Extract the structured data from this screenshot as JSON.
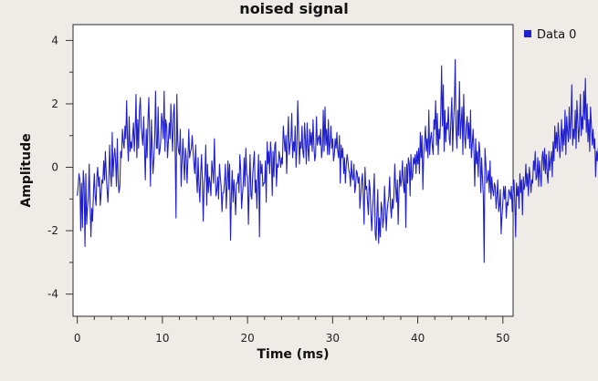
{
  "chart_data": {
    "type": "line",
    "title": "noised signal",
    "xlabel": "Time (ms)",
    "ylabel": "Amplitude",
    "xlim": [
      -0.5,
      51.2
    ],
    "ylim": [
      -4.7,
      4.5
    ],
    "xticks": [
      0,
      10,
      20,
      30,
      40,
      50
    ],
    "yticks": [
      -4,
      -2,
      0,
      2,
      4
    ],
    "grid": false,
    "legend_position": "top-right",
    "series": [
      {
        "name": "Data 0",
        "color": "#1f1fcf",
        "x_start": 0,
        "x_step": 0.1,
        "y": [
          -0.9,
          -0.6,
          -0.2,
          -0.4,
          -2.0,
          -0.5,
          -1.9,
          -0.1,
          -0.5,
          -2.5,
          -0.2,
          -1.8,
          -1.3,
          -0.9,
          0.1,
          -1.1,
          -2.2,
          -1.3,
          -1.7,
          -0.8,
          -0.2,
          -0.9,
          -1.2,
          -0.3,
          0.0,
          -0.6,
          -0.3,
          -1.2,
          -0.8,
          -0.4,
          -0.5,
          0.2,
          -0.4,
          0.5,
          -0.2,
          -0.7,
          -1.1,
          -0.4,
          0.7,
          -0.2,
          -0.6,
          1.1,
          -0.3,
          0.3,
          0.6,
          0.2,
          -0.6,
          0.9,
          -0.4,
          -0.8,
          -0.6,
          0.5,
          0.3,
          1.2,
          0.8,
          0.6,
          1.3,
          0.9,
          2.1,
          0.8,
          0.2,
          1.6,
          0.5,
          0.8,
          0.6,
          1.0,
          1.4,
          0.5,
          1.2,
          2.3,
          0.3,
          1.5,
          0.6,
          1.8,
          2.2,
          1.3,
          1.0,
          0.7,
          1.6,
          0.6,
          -0.4,
          1.2,
          0.3,
          1.4,
          2.2,
          0.9,
          -0.6,
          1.5,
          0.6,
          -0.2,
          0.3,
          1.0,
          2.4,
          0.6,
          0.6,
          1.9,
          0.4,
          0.5,
          0.8,
          1.7,
          1.4,
          0.9,
          2.4,
          0.5,
          1.5,
          1.3,
          0.3,
          0.8,
          1.4,
          0.9,
          2.0,
          1.2,
          0.5,
          1.7,
          2.0,
          0.4,
          -1.6,
          2.3,
          0.8,
          0.5,
          0.4,
          1.2,
          -0.6,
          0.1,
          0.9,
          0.2,
          -0.4,
          0.6,
          0.3,
          -0.5,
          0.3,
          1.2,
          0.3,
          0.5,
          0.6,
          1.0,
          0.5,
          0.1,
          -0.2,
          0.7,
          -0.3,
          -0.8,
          0.3,
          -0.6,
          -1.1,
          -0.2,
          0.4,
          -0.5,
          -1.7,
          -0.5,
          -0.2,
          0.7,
          -1.2,
          0.1,
          -0.8,
          -0.3,
          -0.5,
          -0.9,
          0.2,
          -0.1,
          -0.5,
          0.9,
          -0.2,
          -0.9,
          -0.7,
          -0.3,
          -1.0,
          0.1,
          -0.3,
          -0.6,
          -1.4,
          -0.8,
          -0.8,
          -0.5,
          0.1,
          -1.3,
          -0.6,
          0.2,
          -0.7,
          0.1,
          -2.3,
          -0.9,
          -0.1,
          -1.1,
          -0.4,
          -0.8,
          -1.5,
          -0.5,
          -0.5,
          -0.2,
          -0.8,
          0.4,
          -0.1,
          -1.3,
          -0.9,
          -0.5,
          0.3,
          -0.6,
          0.6,
          -0.2,
          -0.3,
          -1.8,
          -0.6,
          0.4,
          -0.9,
          -1.0,
          -0.3,
          0.1,
          0.5,
          -0.8,
          -0.4,
          -1.3,
          -0.3,
          0.4,
          -2.2,
          0.2,
          -0.2,
          0.1,
          -0.6,
          -0.5,
          -0.5,
          0.2,
          -1.1,
          0.8,
          0.1,
          0.5,
          -0.2,
          0.8,
          0.4,
          -0.9,
          0.5,
          -0.3,
          0.7,
          0.8,
          -0.6,
          0.1,
          0.0,
          0.5,
          0.3,
          0.0,
          0.3,
          0.1,
          1.3,
          0.9,
          0.5,
          1.0,
          -0.2,
          0.8,
          1.6,
          0.4,
          0.7,
          0.9,
          1.7,
          0.3,
          0.8,
          0.5,
          1.3,
          0.0,
          0.6,
          2.1,
          1.1,
          0.1,
          0.8,
          0.6,
          1.3,
          0.5,
          0.3,
          1.4,
          0.9,
          0.1,
          1.4,
          0.6,
          0.2,
          1.2,
          0.7,
          1.1,
          0.5,
          1.5,
          0.7,
          0.2,
          0.4,
          1.6,
          0.7,
          0.9,
          1.0,
          0.7,
          1.2,
          0.3,
          0.6,
          1.8,
          0.5,
          1.9,
          0.7,
          1.2,
          0.4,
          1.5,
          0.4,
          0.8,
          1.3,
          0.6,
          0.9,
          0.2,
          0.4,
          0.9,
          0.6,
          1.1,
          0.5,
          0.3,
          1.0,
          -0.5,
          0.7,
          0.3,
          0.6,
          -0.2,
          0.3,
          -0.5,
          0.1,
          0.4,
          0.2,
          -0.1,
          -0.2,
          -0.6,
          0.2,
          -0.3,
          -0.4,
          0.1,
          -0.8,
          -0.6,
          -0.1,
          -0.2,
          -0.5,
          -0.3,
          -1.3,
          -0.9,
          -0.4,
          -0.2,
          -0.9,
          -1.8,
          0.0,
          -0.7,
          -0.6,
          -1.1,
          -1.5,
          -0.4,
          -0.7,
          -1.5,
          -2.0,
          -1.3,
          -0.8,
          -0.2,
          -2.1,
          -2.3,
          -1.5,
          -0.7,
          -2.4,
          -1.6,
          -2.2,
          -1.1,
          -1.3,
          -1.9,
          -1.6,
          -0.6,
          -1.3,
          -2.0,
          -1.4,
          -1.1,
          -0.9,
          -0.3,
          -1.2,
          -1.6,
          -1.0,
          -1.3,
          -0.9,
          0.1,
          -0.6,
          -1.1,
          -0.4,
          -1.8,
          -0.7,
          -0.1,
          -0.6,
          -0.4,
          0.2,
          -0.5,
          -0.8,
          0.0,
          -1.9,
          0.1,
          -0.5,
          0.3,
          0.1,
          -0.9,
          0.4,
          -0.4,
          -0.3,
          0.3,
          0.1,
          0.4,
          -0.2,
          0.5,
          0.1,
          0.6,
          -0.2,
          1.1,
          0.3,
          1.0,
          -0.7,
          0.4,
          0.8,
          1.3,
          0.5,
          0.9,
          0.3,
          1.8,
          0.4,
          0.9,
          1.1,
          0.7,
          0.4,
          1.5,
          1.2,
          2.1,
          0.7,
          1.7,
          0.4,
          1.2,
          0.9,
          1.7,
          3.2,
          1.3,
          2.6,
          0.5,
          1.8,
          0.8,
          1.4,
          1.2,
          1.9,
          0.9,
          0.7,
          1.5,
          2.2,
          0.5,
          1.4,
          2.0,
          3.4,
          1.2,
          0.6,
          1.8,
          1.0,
          2.7,
          0.9,
          1.4,
          1.9,
          0.4,
          2.3,
          1.0,
          0.6,
          1.3,
          1.6,
          0.9,
          1.4,
          0.6,
          1.8,
          0.3,
          0.7,
          1.2,
          0.5,
          -0.6,
          0.9,
          0.1,
          0.5,
          -0.3,
          0.8,
          0.5,
          -0.8,
          0.3,
          -0.3,
          -0.9,
          -3.0,
          0.6,
          0.1,
          -0.5,
          -0.4,
          -0.1,
          -0.8,
          0.2,
          -1.0,
          -0.3,
          -0.7,
          -0.9,
          -0.5,
          -0.6,
          -1.3,
          -0.9,
          -0.4,
          -1.4,
          -1.2,
          -0.7,
          -2.1,
          -1.5,
          -1.1,
          -0.6,
          -1.0,
          -0.6,
          -1.6,
          -1.1,
          -1.2,
          -0.7,
          -0.8,
          -1.0,
          -0.6,
          -1.4,
          -0.8,
          -0.4,
          -1.1,
          -2.2,
          -0.5,
          -0.9,
          -0.6,
          -1.3,
          -0.2,
          -0.8,
          -0.4,
          -1.5,
          -0.3,
          -0.7,
          -0.5,
          0.1,
          -0.6,
          -0.2,
          -0.9,
          0.0,
          -0.3,
          -0.8,
          -0.4,
          -0.5,
          0.2,
          -0.1,
          0.5,
          -0.4,
          -0.3,
          0.3,
          -0.6,
          0.2,
          -0.2,
          -0.6,
          0.3,
          0.5,
          -0.1,
          0.6,
          -0.2,
          0.4,
          -0.2,
          -0.5,
          0.5,
          -0.1,
          0.2,
          0.5,
          -0.3,
          0.8,
          0.2,
          1.3,
          0.6,
          1.1,
          0.5,
          1.4,
          0.9,
          0.3,
          0.8,
          1.5,
          0.5,
          1.2,
          0.7,
          1.8,
          0.4,
          1.6,
          1.1,
          0.8,
          1.9,
          0.9,
          1.5,
          2.6,
          0.7,
          1.2,
          0.9,
          1.8,
          0.6,
          2.1,
          1.4,
          0.8,
          1.3,
          2.3,
          1.0,
          1.6,
          1.2,
          2.4,
          1.5,
          2.8,
          1.1,
          2.0,
          0.8,
          1.5,
          0.5,
          1.9,
          1.3,
          0.7,
          1.2,
          0.6,
          0.9,
          -0.3,
          0.5,
          0.2,
          0.6,
          -0.4,
          0.3,
          -0.8,
          0.1,
          -0.2,
          0.4,
          -1.4,
          -0.5,
          0.3,
          -1.2,
          -0.6,
          -0.3,
          0.0,
          -1.1,
          -0.2,
          -1.8,
          -0.9,
          -0.4,
          -1.3,
          -0.6,
          -0.5,
          -3.1,
          -1.0,
          -0.5,
          -0.2,
          0.4,
          -1.3,
          -0.4,
          -1.6,
          -0.8,
          -1.0,
          -0.6,
          -0.3,
          0.3,
          -0.9,
          -1.2,
          -0.6,
          -0.8,
          -0.5,
          -0.4,
          -1.3,
          -1.0,
          -0.4,
          -0.6
        ]
      }
    ]
  }
}
